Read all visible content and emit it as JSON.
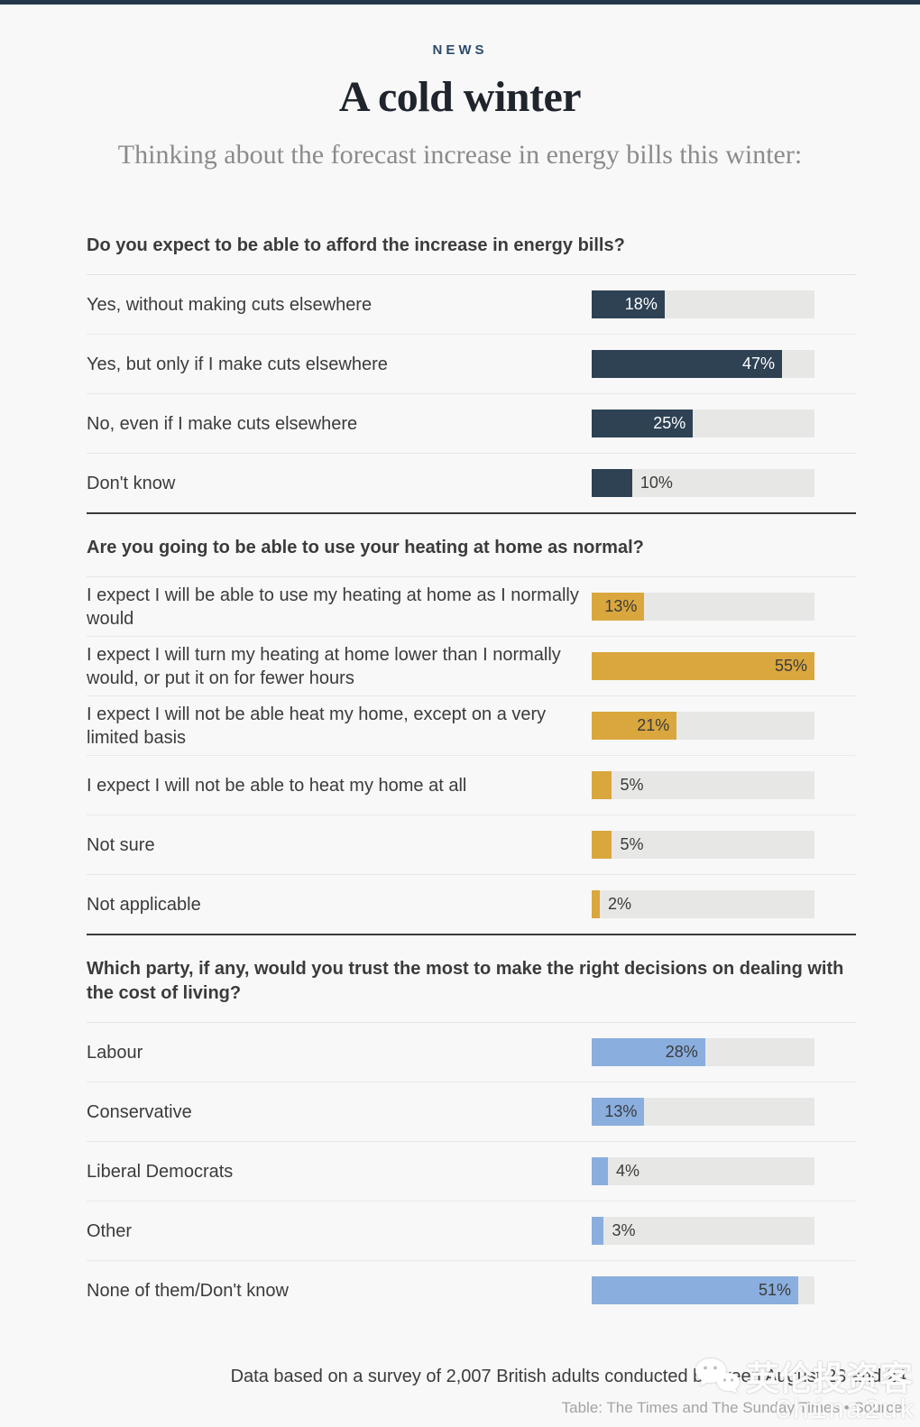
{
  "page": {
    "kicker": "NEWS",
    "title": "A cold winter",
    "subtitle": "Thinking about the forecast increase in energy bills this winter:",
    "note": "Data based on a survey of 2,007 British adults conducted between August 23 and 24",
    "caption": "Table: The Times and The Sunday Times • Source:",
    "watermark_name": "英伦投资客",
    "watermark_handle": "China2uk"
  },
  "colors": {
    "topbar": "#24364a",
    "track": "#e7e7e6",
    "label_outside": "#3b3b3b"
  },
  "chart_data": [
    {
      "type": "bar",
      "title": "Do you expect to be able to afford the increase in energy bills?",
      "categories": [
        "Yes, without making cuts elsewhere",
        "Yes, but only if I make cuts elsewhere",
        "No, even if I make cuts elsewhere",
        "Don't know"
      ],
      "values": [
        18,
        47,
        25,
        10
      ],
      "unit": "%",
      "bar_color": "#2e4254",
      "label_color_inside": "#ffffff",
      "xlim": [
        0,
        55
      ],
      "grid": false,
      "legend": false
    },
    {
      "type": "bar",
      "title": "Are you going to be able to use your heating at home as normal?",
      "categories": [
        "I expect I will be able to use my heating at home as I normally would",
        "I expect I will turn my heating at home lower than I normally would, or put it on for fewer hours",
        "I expect I will not be able heat my home, except on a very limited basis",
        "I expect I will not be able to heat my home at all",
        "Not sure",
        "Not applicable"
      ],
      "values": [
        13,
        55,
        21,
        5,
        5,
        2
      ],
      "unit": "%",
      "bar_color": "#d9a73e",
      "label_color_inside": "#3b3b3b",
      "xlim": [
        0,
        55
      ],
      "grid": false,
      "legend": false
    },
    {
      "type": "bar",
      "title": "Which party, if any, would you trust the most to make the right decisions on dealing with the cost of living?",
      "categories": [
        "Labour",
        "Conservative",
        "Liberal Democrats",
        "Other",
        "None of them/Don't know"
      ],
      "values": [
        28,
        13,
        4,
        3,
        51
      ],
      "unit": "%",
      "bar_color": "#8aaede",
      "label_color_inside": "#3b3b3b",
      "xlim": [
        0,
        55
      ],
      "grid": false,
      "legend": false
    }
  ]
}
